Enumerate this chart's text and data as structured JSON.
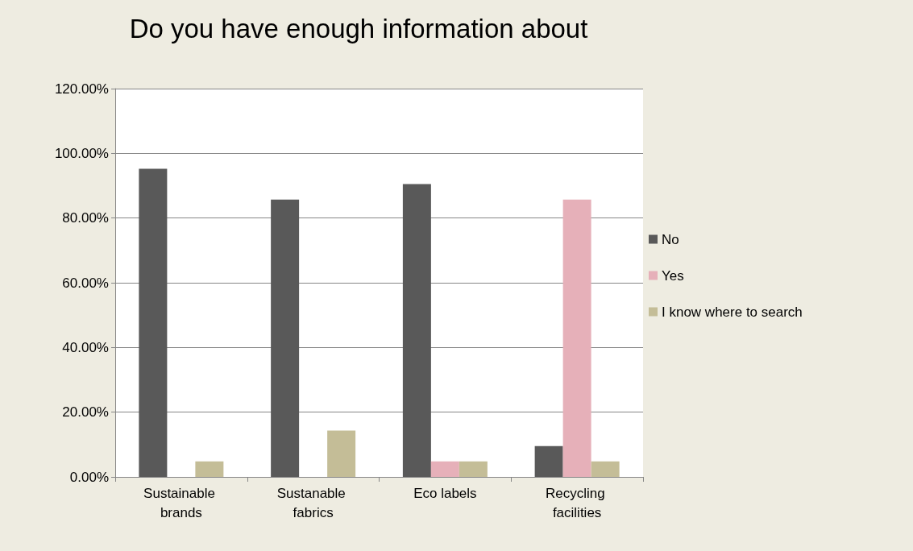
{
  "chart_data": {
    "type": "bar",
    "title": "Do you have enough information about",
    "categories": [
      "Sustainable brands",
      "Sustanable fabrics",
      "Eco labels",
      "Recycling facilities"
    ],
    "series": [
      {
        "name": "No",
        "color": "#595959",
        "values": [
          95.2,
          85.7,
          90.5,
          9.5
        ]
      },
      {
        "name": "Yes",
        "color": "#e6b0b9",
        "values": [
          0,
          0,
          4.8,
          85.7
        ]
      },
      {
        "name": "I know where to search",
        "color": "#c4bd97",
        "values": [
          4.8,
          14.3,
          4.8,
          4.8
        ]
      }
    ],
    "ylim": [
      0,
      120
    ],
    "yticks": [
      {
        "value": 0,
        "label": "0.00%"
      },
      {
        "value": 20,
        "label": "20.00%"
      },
      {
        "value": 40,
        "label": "40.00%"
      },
      {
        "value": 60,
        "label": "60.00%"
      },
      {
        "value": 80,
        "label": "80.00%"
      },
      {
        "value": 100,
        "label": "100.00%"
      },
      {
        "value": 120,
        "label": "120.00%"
      }
    ],
    "grid": "y",
    "legend": "right"
  }
}
